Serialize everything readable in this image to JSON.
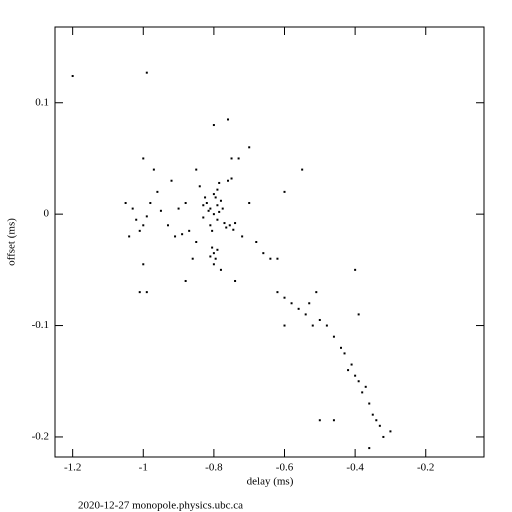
{
  "chart_data": {
    "type": "scatter",
    "xlabel": "delay (ms)",
    "ylabel": "offset (ms)",
    "footer": "2020-12-27  monopole.physics.ubc.ca",
    "color": "#000000",
    "xlim": [
      -1.25,
      -0.035
    ],
    "ylim": [
      -0.218,
      0.168
    ],
    "xticks": [
      -1.2,
      -1,
      -0.8,
      -0.6,
      -0.4,
      -0.2
    ],
    "yticks": [
      0.1,
      0,
      -0.1,
      -0.2
    ],
    "x": [
      -0.8,
      -0.81,
      -0.79,
      -0.82,
      -0.78,
      -0.8,
      -0.81,
      -0.79,
      -0.77,
      -0.83,
      -0.795,
      -0.805,
      -0.785,
      -0.815,
      -0.775,
      -0.765,
      -0.755,
      -0.745,
      -0.74,
      -0.79,
      -0.785,
      -0.76,
      -0.75,
      -0.825,
      -0.83,
      -0.8,
      -0.79,
      -0.81,
      -0.795,
      -0.805,
      -0.8,
      -1.02,
      -1.0,
      -1.03,
      -0.99,
      -1.01,
      -0.98,
      -0.9,
      -0.88,
      -0.89,
      -0.91,
      -0.87,
      -0.95,
      -0.93,
      -1.05,
      -1.04,
      -0.96,
      -0.92,
      -1.0,
      -0.97,
      -0.85,
      -0.86,
      -0.88,
      -1.0,
      -0.99,
      -1.01,
      -0.84,
      -0.85,
      -0.7,
      -0.72,
      -0.68,
      -0.66,
      -0.64,
      -0.62,
      -0.73,
      -0.75,
      -0.7,
      -0.76,
      -0.8,
      -0.78,
      -0.74,
      -0.6,
      -0.55,
      -0.62,
      -0.6,
      -0.58,
      -0.56,
      -0.54,
      -0.52,
      -0.5,
      -0.51,
      -0.53,
      -0.48,
      -0.46,
      -0.44,
      -0.43,
      -0.42,
      -0.41,
      -0.4,
      -0.39,
      -0.38,
      -0.37,
      -0.36,
      -0.35,
      -0.34,
      -0.33,
      -0.32,
      -0.3,
      -0.36,
      -0.4,
      -0.39,
      -0.6,
      -0.5,
      -0.46,
      -1.2,
      -0.99
    ],
    "y": [
      0,
      0.005,
      -0.005,
      0.01,
      0.012,
      0.018,
      -0.01,
      0.008,
      -0.008,
      -0.003,
      0.015,
      -0.015,
      0.002,
      0.003,
      0.005,
      -0.012,
      -0.01,
      -0.014,
      -0.008,
      0.022,
      0.028,
      0.03,
      0.032,
      0.015,
      0.008,
      -0.035,
      -0.032,
      -0.038,
      -0.04,
      -0.03,
      -0.045,
      -0.005,
      -0.01,
      0.005,
      -0.002,
      -0.015,
      0.01,
      0.005,
      0.01,
      -0.018,
      -0.02,
      -0.015,
      0.003,
      -0.01,
      0.01,
      -0.02,
      0.02,
      0.03,
      0.05,
      0.04,
      0.04,
      -0.04,
      -0.06,
      -0.045,
      -0.07,
      -0.07,
      0.025,
      -0.025,
      0.01,
      -0.02,
      -0.025,
      -0.035,
      -0.04,
      -0.04,
      0.05,
      0.05,
      0.06,
      0.085,
      0.08,
      -0.05,
      -0.06,
      0.02,
      0.04,
      -0.07,
      -0.075,
      -0.08,
      -0.085,
      -0.09,
      -0.1,
      -0.095,
      -0.07,
      -0.08,
      -0.1,
      -0.11,
      -0.12,
      -0.125,
      -0.14,
      -0.135,
      -0.145,
      -0.15,
      -0.16,
      -0.155,
      -0.17,
      -0.18,
      -0.185,
      -0.19,
      -0.2,
      -0.195,
      -0.21,
      -0.05,
      -0.09,
      -0.1,
      -0.185,
      -0.185,
      0.124,
      0.127
    ]
  }
}
